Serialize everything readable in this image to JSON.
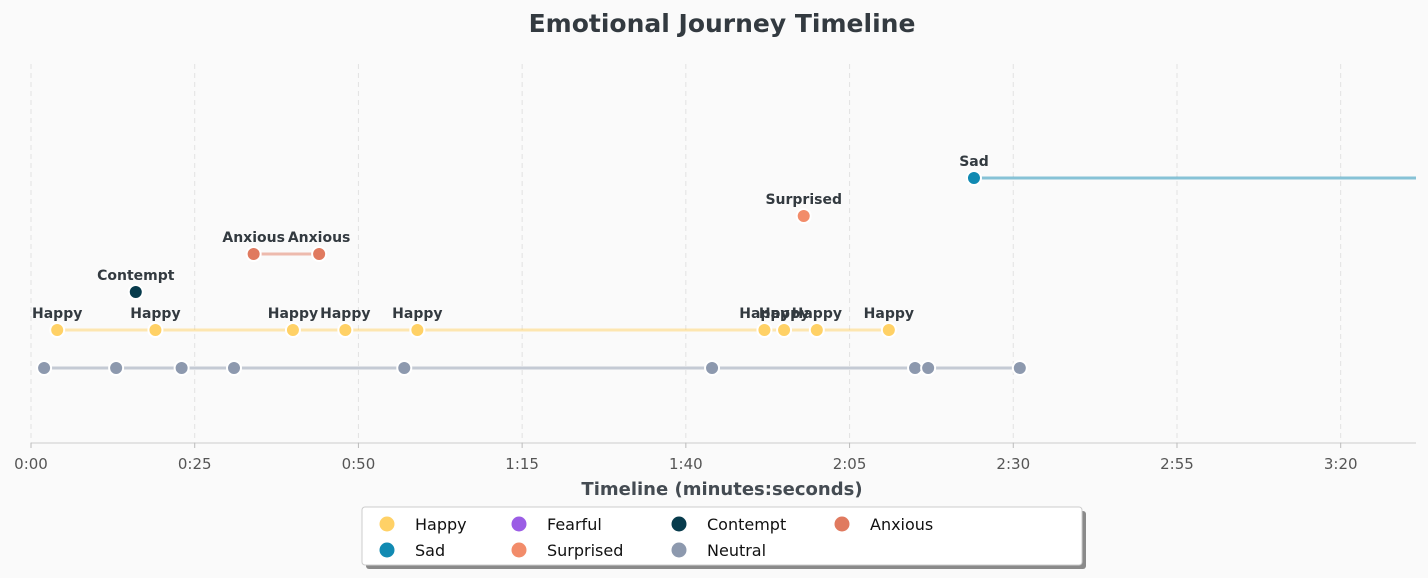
{
  "chart_data": {
    "type": "scatter",
    "title": "Emotional Journey Timeline",
    "xlabel": "Timeline (minutes:seconds)",
    "xlim": [
      0,
      211.5
    ],
    "x_ticks": [
      {
        "value": 0,
        "label": "0:00"
      },
      {
        "value": 25,
        "label": "0:25"
      },
      {
        "value": 50,
        "label": "0:50"
      },
      {
        "value": 75,
        "label": "1:15"
      },
      {
        "value": 100,
        "label": "1:40"
      },
      {
        "value": 125,
        "label": "2:05"
      },
      {
        "value": 150,
        "label": "2:30"
      },
      {
        "value": 175,
        "label": "2:55"
      },
      {
        "value": 200,
        "label": "3:20"
      }
    ],
    "grid": "vertical dashed",
    "legend_position": "bottom-center",
    "series": [
      {
        "name": "Happy",
        "color": "#FFD166",
        "level": 2,
        "labeled": true,
        "x": [
          4,
          19,
          40,
          48,
          59,
          112,
          115,
          120,
          131
        ]
      },
      {
        "name": "Sad",
        "color": "#118AB2",
        "level": 6,
        "labeled": true,
        "x": [
          144
        ],
        "line_to_end": true
      },
      {
        "name": "Fearful",
        "color": "#9B5DE5",
        "level": null,
        "labeled": true,
        "x": []
      },
      {
        "name": "Surprised",
        "color": "#F28C6A",
        "level": 5,
        "labeled": true,
        "x": [
          118
        ]
      },
      {
        "name": "Contempt",
        "color": "#073B4C",
        "level": 3,
        "labeled": true,
        "x": [
          16
        ]
      },
      {
        "name": "Neutral",
        "color": "#8D99AE",
        "level": 1,
        "labeled": false,
        "x": [
          2,
          13,
          23,
          31,
          57,
          104,
          135,
          137,
          151
        ]
      },
      {
        "name": "Anxious",
        "color": "#E07A5F",
        "level": 4,
        "labeled": true,
        "x": [
          34,
          44
        ]
      }
    ]
  }
}
